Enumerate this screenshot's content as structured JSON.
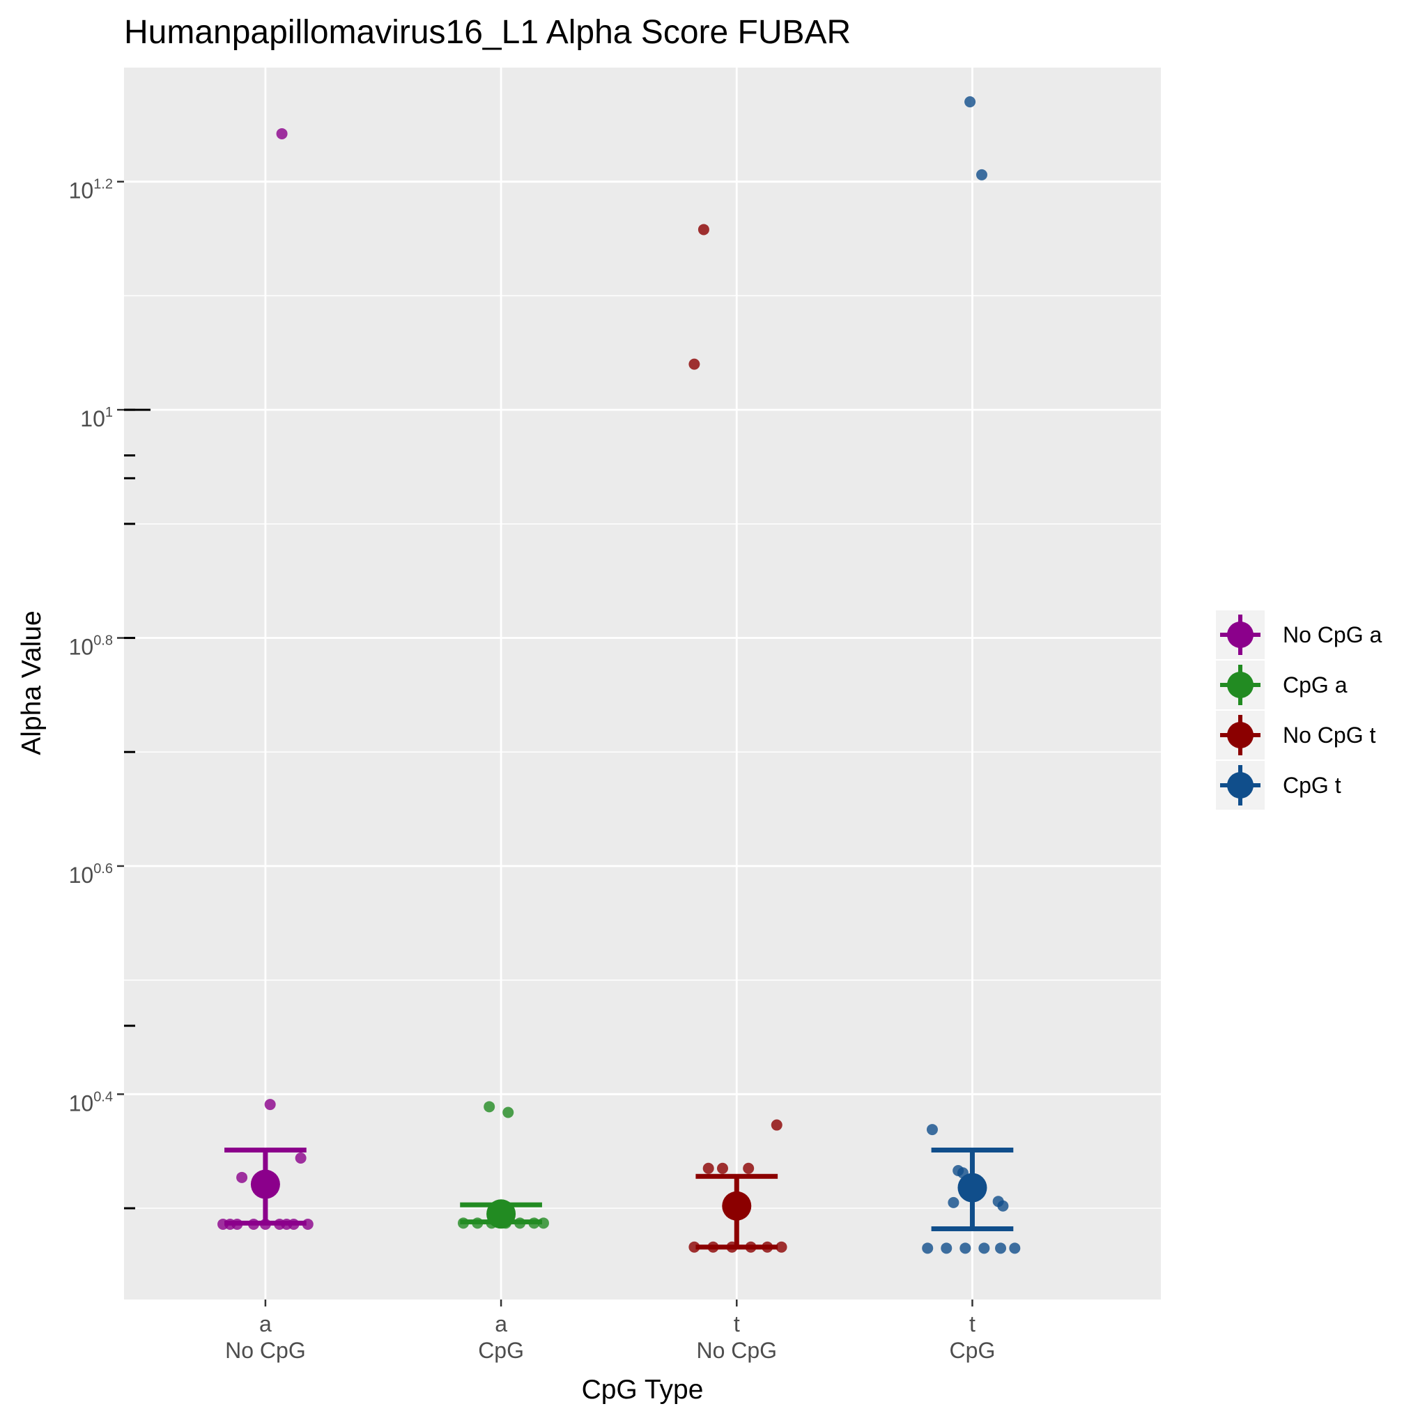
{
  "chart_data": {
    "type": "scatter",
    "title": "Humanpapillomavirus16_L1 Alpha Score FUBAR",
    "xlabel": "CpG Type",
    "ylabel": "Alpha Value",
    "y_scale": "log10",
    "y_exponent_range": [
      0.22,
      1.3
    ],
    "y_tick_labels": [
      {
        "exp": 0.4,
        "base": "10",
        "sup": "0.4"
      },
      {
        "exp": 0.6,
        "base": "10",
        "sup": "0.6"
      },
      {
        "exp": 0.8,
        "base": "10",
        "sup": "0.8"
      },
      {
        "exp": 1.0,
        "base": "10",
        "sup": "1"
      },
      {
        "exp": 1.2,
        "base": "10",
        "sup": "1.2"
      }
    ],
    "y_minor_gridlines": [
      0.3,
      0.5,
      0.7,
      0.9,
      1.1
    ],
    "y_extra_ticks": [
      0.3,
      0.46,
      0.7,
      0.8,
      0.8,
      0.9,
      0.94,
      0.96,
      1.0
    ],
    "categories": [
      {
        "top": "a",
        "bottom": "No CpG"
      },
      {
        "top": "a",
        "bottom": "CpG"
      },
      {
        "top": "t",
        "bottom": "No CpG"
      },
      {
        "top": "t",
        "bottom": "CpG"
      }
    ],
    "legend": {
      "position": "right",
      "entries": [
        "No CpG a",
        "CpG a",
        "No CpG t",
        "CpG t"
      ]
    },
    "grid": true,
    "series": [
      {
        "name": "No CpG a",
        "color": "#8B008B",
        "category_index": 0,
        "mean_exp": 0.321,
        "error_exp": [
          0.287,
          0.351
        ],
        "points": [
          {
            "dx": 0.07,
            "exp": 1.242
          },
          {
            "dx": 0.02,
            "exp": 0.391
          },
          {
            "dx": 0.15,
            "exp": 0.344
          },
          {
            "dx": -0.1,
            "exp": 0.327
          },
          {
            "dx": -0.18,
            "exp": 0.286
          },
          {
            "dx": -0.12,
            "exp": 0.286
          },
          {
            "dx": -0.05,
            "exp": 0.286
          },
          {
            "dx": 0.0,
            "exp": 0.286
          },
          {
            "dx": 0.06,
            "exp": 0.286
          },
          {
            "dx": 0.12,
            "exp": 0.286
          },
          {
            "dx": 0.18,
            "exp": 0.286
          },
          {
            "dx": -0.15,
            "exp": 0.286
          },
          {
            "dx": 0.09,
            "exp": 0.286
          }
        ]
      },
      {
        "name": "CpG a",
        "color": "#228B22",
        "category_index": 1,
        "mean_exp": 0.295,
        "error_exp": [
          0.288,
          0.303
        ],
        "points": [
          {
            "dx": -0.05,
            "exp": 0.389
          },
          {
            "dx": 0.03,
            "exp": 0.384
          },
          {
            "dx": -0.16,
            "exp": 0.287
          },
          {
            "dx": -0.1,
            "exp": 0.287
          },
          {
            "dx": -0.04,
            "exp": 0.287
          },
          {
            "dx": 0.02,
            "exp": 0.287
          },
          {
            "dx": 0.08,
            "exp": 0.287
          },
          {
            "dx": 0.14,
            "exp": 0.287
          },
          {
            "dx": 0.18,
            "exp": 0.287
          }
        ]
      },
      {
        "name": "No CpG t",
        "color": "#8B0000",
        "category_index": 2,
        "mean_exp": 0.302,
        "error_exp": [
          0.266,
          0.328
        ],
        "points": [
          {
            "dx": -0.14,
            "exp": 1.158
          },
          {
            "dx": -0.18,
            "exp": 1.04
          },
          {
            "dx": 0.17,
            "exp": 0.373
          },
          {
            "dx": -0.12,
            "exp": 0.335
          },
          {
            "dx": -0.06,
            "exp": 0.335
          },
          {
            "dx": 0.05,
            "exp": 0.335
          },
          {
            "dx": -0.18,
            "exp": 0.266
          },
          {
            "dx": -0.1,
            "exp": 0.266
          },
          {
            "dx": -0.02,
            "exp": 0.266
          },
          {
            "dx": 0.06,
            "exp": 0.266
          },
          {
            "dx": 0.13,
            "exp": 0.266
          },
          {
            "dx": 0.19,
            "exp": 0.266
          }
        ]
      },
      {
        "name": "CpG t",
        "color": "#104E8B",
        "category_index": 3,
        "mean_exp": 0.318,
        "error_exp": [
          0.282,
          0.351
        ],
        "points": [
          {
            "dx": -0.01,
            "exp": 1.27
          },
          {
            "dx": 0.04,
            "exp": 1.206
          },
          {
            "dx": -0.17,
            "exp": 0.369
          },
          {
            "dx": -0.06,
            "exp": 0.333
          },
          {
            "dx": -0.04,
            "exp": 0.331
          },
          {
            "dx": -0.08,
            "exp": 0.305
          },
          {
            "dx": 0.11,
            "exp": 0.306
          },
          {
            "dx": 0.13,
            "exp": 0.302
          },
          {
            "dx": -0.19,
            "exp": 0.265
          },
          {
            "dx": -0.11,
            "exp": 0.265
          },
          {
            "dx": -0.03,
            "exp": 0.265
          },
          {
            "dx": 0.05,
            "exp": 0.265
          },
          {
            "dx": 0.12,
            "exp": 0.265
          },
          {
            "dx": 0.18,
            "exp": 0.265
          }
        ]
      }
    ]
  }
}
